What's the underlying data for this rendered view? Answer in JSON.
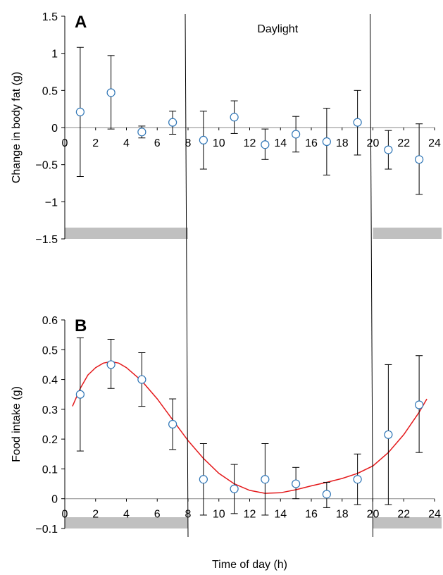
{
  "chart_data": [
    {
      "type": "scatter",
      "panel": "A",
      "ylabel": "Change in body fat (g)",
      "xlabel": "",
      "xlim": [
        0,
        24
      ],
      "ylim": [
        -1.5,
        1.5
      ],
      "xticks": [
        "0",
        "2",
        "4",
        "6",
        "8",
        "10",
        "12",
        "14",
        "16",
        "18",
        "20",
        "22",
        "24"
      ],
      "yticks": [
        "1.5",
        "1",
        "0.5",
        "0",
        "-0.5",
        "-1",
        "-1.5"
      ],
      "points": [
        {
          "x": 1,
          "y": 0.21,
          "err_low": -0.66,
          "err_high": 1.08
        },
        {
          "x": 3,
          "y": 0.47,
          "err_low": -0.02,
          "err_high": 0.97
        },
        {
          "x": 5,
          "y": -0.06,
          "err_low": -0.14,
          "err_high": 0.02
        },
        {
          "x": 7,
          "y": 0.07,
          "err_low": -0.09,
          "err_high": 0.22
        },
        {
          "x": 9,
          "y": -0.17,
          "err_low": -0.56,
          "err_high": 0.22
        },
        {
          "x": 11,
          "y": 0.14,
          "err_low": -0.08,
          "err_high": 0.36
        },
        {
          "x": 13,
          "y": -0.23,
          "err_low": -0.43,
          "err_high": -0.02
        },
        {
          "x": 15,
          "y": -0.09,
          "err_low": -0.33,
          "err_high": 0.15
        },
        {
          "x": 17,
          "y": -0.19,
          "err_low": -0.64,
          "err_high": 0.26
        },
        {
          "x": 19,
          "y": 0.07,
          "err_low": -0.37,
          "err_high": 0.5
        },
        {
          "x": 21,
          "y": -0.3,
          "err_low": -0.56,
          "err_high": -0.04
        },
        {
          "x": 23,
          "y": -0.43,
          "err_low": -0.9,
          "err_high": 0.05
        }
      ],
      "dark_periods": [
        [
          0,
          8
        ],
        [
          20,
          24
        ]
      ]
    },
    {
      "type": "scatter",
      "panel": "B",
      "ylabel": "Food intake (g)",
      "xlabel": "Time of day (h)",
      "xlim": [
        0,
        24
      ],
      "ylim": [
        -0.1,
        0.6
      ],
      "xticks": [
        "0",
        "2",
        "4",
        "6",
        "8",
        "10",
        "12",
        "14",
        "16",
        "18",
        "20",
        "22",
        "24"
      ],
      "yticks": [
        "0.6",
        "0.5",
        "0.4",
        "0.3",
        "0.2",
        "0.1",
        "0",
        "-0.1"
      ],
      "points": [
        {
          "x": 1,
          "y": 0.35,
          "err_low": 0.16,
          "err_high": 0.54
        },
        {
          "x": 3,
          "y": 0.45,
          "err_low": 0.37,
          "err_high": 0.535
        },
        {
          "x": 5,
          "y": 0.4,
          "err_low": 0.31,
          "err_high": 0.49
        },
        {
          "x": 7,
          "y": 0.25,
          "err_low": 0.165,
          "err_high": 0.335
        },
        {
          "x": 9,
          "y": 0.065,
          "err_low": -0.055,
          "err_high": 0.185
        },
        {
          "x": 11,
          "y": 0.033,
          "err_low": -0.05,
          "err_high": 0.115
        },
        {
          "x": 13,
          "y": 0.065,
          "err_low": -0.055,
          "err_high": 0.185
        },
        {
          "x": 15,
          "y": 0.05,
          "err_low": 0.0,
          "err_high": 0.105
        },
        {
          "x": 17,
          "y": 0.015,
          "err_low": -0.03,
          "err_high": 0.055
        },
        {
          "x": 19,
          "y": 0.065,
          "err_low": -0.02,
          "err_high": 0.15
        },
        {
          "x": 21,
          "y": 0.215,
          "err_low": -0.02,
          "err_high": 0.45
        },
        {
          "x": 23,
          "y": 0.315,
          "err_low": 0.155,
          "err_high": 0.48
        }
      ],
      "fit_curve": [
        {
          "x": 0.5,
          "y": 0.31
        },
        {
          "x": 1,
          "y": 0.37
        },
        {
          "x": 1.5,
          "y": 0.415
        },
        {
          "x": 2,
          "y": 0.44
        },
        {
          "x": 2.5,
          "y": 0.455
        },
        {
          "x": 3,
          "y": 0.46
        },
        {
          "x": 3.5,
          "y": 0.455
        },
        {
          "x": 4,
          "y": 0.44
        },
        {
          "x": 5,
          "y": 0.395
        },
        {
          "x": 6,
          "y": 0.335
        },
        {
          "x": 7,
          "y": 0.265
        },
        {
          "x": 8,
          "y": 0.195
        },
        {
          "x": 9,
          "y": 0.135
        },
        {
          "x": 10,
          "y": 0.085
        },
        {
          "x": 11,
          "y": 0.05
        },
        {
          "x": 12,
          "y": 0.028
        },
        {
          "x": 13,
          "y": 0.018
        },
        {
          "x": 14,
          "y": 0.02
        },
        {
          "x": 15,
          "y": 0.03
        },
        {
          "x": 16,
          "y": 0.043
        },
        {
          "x": 17,
          "y": 0.055
        },
        {
          "x": 18,
          "y": 0.068
        },
        {
          "x": 19,
          "y": 0.085
        },
        {
          "x": 20,
          "y": 0.11
        },
        {
          "x": 21,
          "y": 0.155
        },
        {
          "x": 22,
          "y": 0.215
        },
        {
          "x": 23,
          "y": 0.29
        },
        {
          "x": 23.5,
          "y": 0.335
        }
      ],
      "dark_periods": [
        [
          0,
          8
        ],
        [
          20,
          24
        ]
      ]
    }
  ],
  "annotations": {
    "daylight_label": "Daylight",
    "daylight_start": 8,
    "daylight_end": 20
  },
  "colors": {
    "marker_edge": "#2e75b6",
    "marker_fill": "#ffffff",
    "fit_line": "#e41a1c",
    "dark_bar": "#c0c0c0",
    "axis": "#000000"
  }
}
